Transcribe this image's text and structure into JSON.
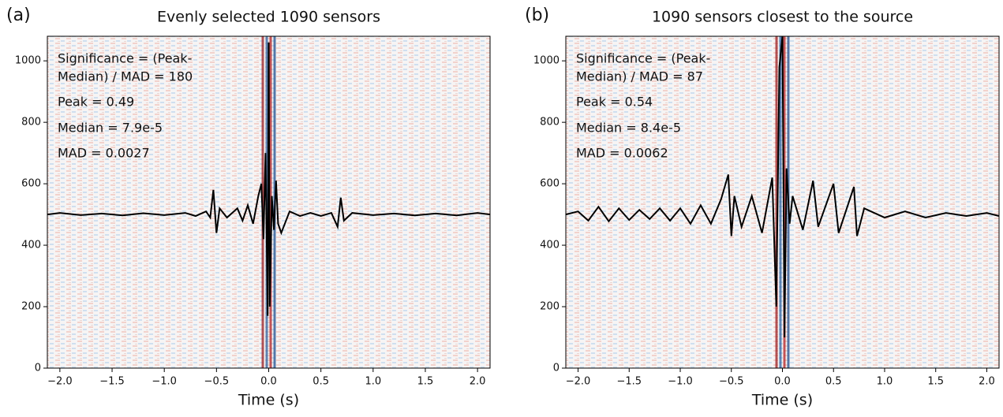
{
  "chart_data": [
    {
      "type": "line",
      "label": "(a)",
      "title": "Evenly selected 1090 sensors",
      "xlabel": "Time (s)",
      "annotations": [
        "Significance = (Peak-",
        "Median) / MAD = 180",
        "Peak = 0.49",
        "Median = 7.9e-5",
        "MAD = 0.0027"
      ],
      "color": "#000000",
      "x": [
        -2.12,
        -2.0,
        -1.8,
        -1.6,
        -1.4,
        -1.2,
        -1.0,
        -0.8,
        -0.7,
        -0.6,
        -0.56,
        -0.53,
        -0.5,
        -0.47,
        -0.4,
        -0.3,
        -0.25,
        -0.2,
        -0.15,
        -0.1,
        -0.07,
        -0.05,
        -0.03,
        -0.01,
        0.0,
        0.01,
        0.03,
        0.05,
        0.07,
        0.09,
        0.12,
        0.2,
        0.3,
        0.4,
        0.5,
        0.6,
        0.66,
        0.69,
        0.72,
        0.8,
        1.0,
        1.2,
        1.4,
        1.6,
        1.8,
        2.0,
        2.12
      ],
      "values": [
        500,
        505,
        498,
        503,
        497,
        504,
        498,
        505,
        495,
        510,
        490,
        580,
        440,
        520,
        490,
        520,
        480,
        530,
        470,
        560,
        600,
        420,
        700,
        170,
        1060,
        200,
        560,
        450,
        610,
        470,
        440,
        510,
        495,
        505,
        495,
        505,
        460,
        555,
        480,
        505,
        498,
        503,
        497,
        503,
        497,
        505,
        500
      ],
      "xlim": [
        -2.12,
        2.12
      ],
      "ylim": [
        0,
        1080
      ],
      "xticks": [
        {
          "value": -2,
          "label": "−2.0"
        },
        {
          "value": -1.5,
          "label": "−1.5"
        },
        {
          "value": -1,
          "label": "−1.0"
        },
        {
          "value": -0.5,
          "label": "−0.5"
        },
        {
          "value": 0,
          "label": "0.0"
        },
        0.5,
        {
          "value": 1,
          "label": "1.0"
        },
        1.5,
        {
          "value": 2,
          "label": "2.0"
        }
      ],
      "yticks": [
        0,
        200,
        400,
        600,
        800,
        1000
      ]
    },
    {
      "type": "line",
      "label": "(b)",
      "title": "1090 sensors closest to the source",
      "xlabel": "Time (s)",
      "annotations": [
        "Significance = (Peak-",
        "Median) / MAD = 87",
        "Peak = 0.54",
        "Median = 8.4e-5",
        "MAD = 0.0062"
      ],
      "color": "#000000",
      "x": [
        -2.12,
        -2.0,
        -1.9,
        -1.8,
        -1.7,
        -1.6,
        -1.5,
        -1.4,
        -1.3,
        -1.2,
        -1.1,
        -1.0,
        -0.9,
        -0.8,
        -0.7,
        -0.6,
        -0.53,
        -0.5,
        -0.47,
        -0.4,
        -0.3,
        -0.2,
        -0.1,
        -0.06,
        -0.03,
        0.0,
        0.02,
        0.04,
        0.07,
        0.1,
        0.2,
        0.3,
        0.35,
        0.5,
        0.55,
        0.7,
        0.73,
        0.8,
        1.0,
        1.2,
        1.4,
        1.6,
        1.8,
        2.0,
        2.12
      ],
      "values": [
        500,
        510,
        480,
        525,
        478,
        520,
        482,
        515,
        485,
        520,
        480,
        520,
        470,
        530,
        470,
        550,
        630,
        430,
        560,
        460,
        560,
        440,
        620,
        200,
        980,
        1080,
        100,
        650,
        470,
        560,
        450,
        610,
        460,
        600,
        440,
        590,
        430,
        520,
        490,
        510,
        490,
        505,
        495,
        505,
        495
      ],
      "xlim": [
        -2.12,
        2.12
      ],
      "ylim": [
        0,
        1080
      ],
      "xticks": [
        {
          "value": -2,
          "label": "−2.0"
        },
        {
          "value": -1.5,
          "label": "−1.5"
        },
        {
          "value": -1,
          "label": "−1.0"
        },
        {
          "value": -0.5,
          "label": "−0.5"
        },
        {
          "value": 0,
          "label": "0.0"
        },
        0.5,
        {
          "value": 1,
          "label": "1.0"
        },
        1.5,
        {
          "value": 2,
          "label": "2.0"
        }
      ],
      "yticks": [
        0,
        200,
        400,
        600,
        800,
        1000
      ]
    }
  ]
}
